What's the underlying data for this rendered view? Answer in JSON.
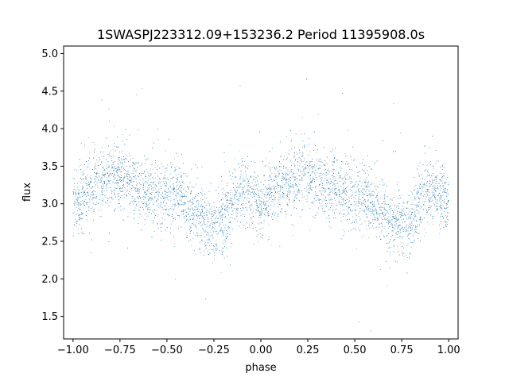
{
  "chart_data": {
    "type": "scatter",
    "title": "1SWASPJ223312.09+153236.2 Period 11395908.0s",
    "xlabel": "phase",
    "ylabel": "flux",
    "xlim": [
      -1.05,
      1.05
    ],
    "ylim": [
      1.2,
      5.1
    ],
    "xticks": [
      -1.0,
      -0.75,
      -0.5,
      -0.25,
      0.0,
      0.25,
      0.5,
      0.75,
      1.0
    ],
    "xtick_labels": [
      "−1.00",
      "−0.75",
      "−0.50",
      "−0.25",
      "0.00",
      "0.25",
      "0.50",
      "0.75",
      "1.00"
    ],
    "yticks": [
      1.5,
      2.0,
      2.5,
      3.0,
      3.5,
      4.0,
      4.5,
      5.0
    ],
    "ytick_labels": [
      "1.5",
      "2.0",
      "2.5",
      "3.0",
      "3.5",
      "4.0",
      "4.5",
      "5.0"
    ],
    "grid": false,
    "marker_color": "#1f77b4",
    "trend": {
      "x": [
        0.0,
        0.05,
        0.1,
        0.15,
        0.2,
        0.25,
        0.3,
        0.35,
        0.4,
        0.45,
        0.5,
        0.55,
        0.6,
        0.65,
        0.7,
        0.75,
        0.8,
        0.85,
        0.9,
        0.95,
        1.0
      ],
      "y": [
        3.0,
        3.1,
        3.2,
        3.3,
        3.35,
        3.4,
        3.3,
        3.2,
        3.2,
        3.15,
        3.1,
        3.15,
        3.0,
        2.9,
        2.75,
        2.7,
        2.8,
        3.0,
        3.2,
        3.1,
        3.0
      ]
    },
    "series": [
      {
        "values_x": [
          -0.98,
          -0.95,
          -0.92,
          -0.9,
          -0.88,
          -0.85,
          -0.82,
          -0.8,
          -0.78,
          -0.76,
          -0.74,
          -0.72,
          -0.7,
          -0.68,
          -0.66,
          -0.64,
          -0.62,
          -0.6,
          -0.58,
          -0.56,
          -0.54,
          -0.52,
          -0.5,
          -0.48,
          -0.46,
          -0.44,
          -0.42,
          -0.4,
          -0.38,
          -0.36,
          -0.34,
          -0.32,
          -0.3,
          -0.28,
          -0.26,
          -0.24,
          -0.22,
          -0.2,
          -0.18,
          -0.16,
          -0.14,
          -0.12,
          -0.1,
          -0.08,
          -0.06,
          -0.04,
          -0.02,
          0.0,
          0.02,
          0.04,
          0.06,
          0.08,
          0.1,
          0.12,
          0.14,
          0.16,
          0.18,
          0.2,
          0.22,
          0.24,
          0.26,
          0.28,
          0.3,
          0.32,
          0.34,
          0.36,
          0.38,
          0.4,
          0.42,
          0.44,
          0.46,
          0.48,
          0.5,
          0.52,
          0.54,
          0.56,
          0.58,
          0.6,
          0.62,
          0.64,
          0.66,
          0.68,
          0.7,
          0.72,
          0.74,
          0.76,
          0.78,
          0.8,
          0.82,
          0.84,
          0.86,
          0.88,
          0.9,
          0.92,
          0.94,
          0.96,
          0.98
        ],
        "values_y": [
          3.05,
          3.1,
          3.15,
          3.2,
          3.3,
          3.35,
          3.4,
          3.45,
          3.5,
          3.45,
          3.55,
          3.4,
          3.35,
          3.3,
          3.25,
          3.2,
          3.15,
          3.1,
          3.15,
          3.2,
          3.15,
          3.1,
          3.15,
          3.1,
          3.05,
          3.15,
          3.1,
          3.0,
          2.9,
          2.85,
          2.75,
          2.7,
          2.65,
          2.7,
          2.75,
          2.8,
          2.9,
          3.0,
          3.05,
          3.15,
          3.1,
          3.05,
          3.1,
          3.0,
          2.95,
          2.9,
          3.0,
          3.0,
          3.1,
          3.2,
          3.3,
          3.35,
          3.4,
          3.35,
          3.4,
          3.45,
          3.5,
          3.45,
          3.5,
          3.55,
          3.45,
          3.5,
          3.4,
          3.3,
          3.25,
          3.2,
          3.2,
          3.15,
          3.1,
          3.2,
          3.15,
          3.1,
          3.15,
          3.05,
          3.0,
          2.95,
          2.9,
          2.85,
          2.8,
          2.75,
          2.7,
          2.75,
          2.7,
          2.8,
          2.85,
          2.9,
          3.0,
          3.05,
          3.1,
          3.15,
          3.2,
          3.1,
          3.05,
          3.0,
          3.05,
          3.0,
          3.0
        ]
      }
    ]
  }
}
